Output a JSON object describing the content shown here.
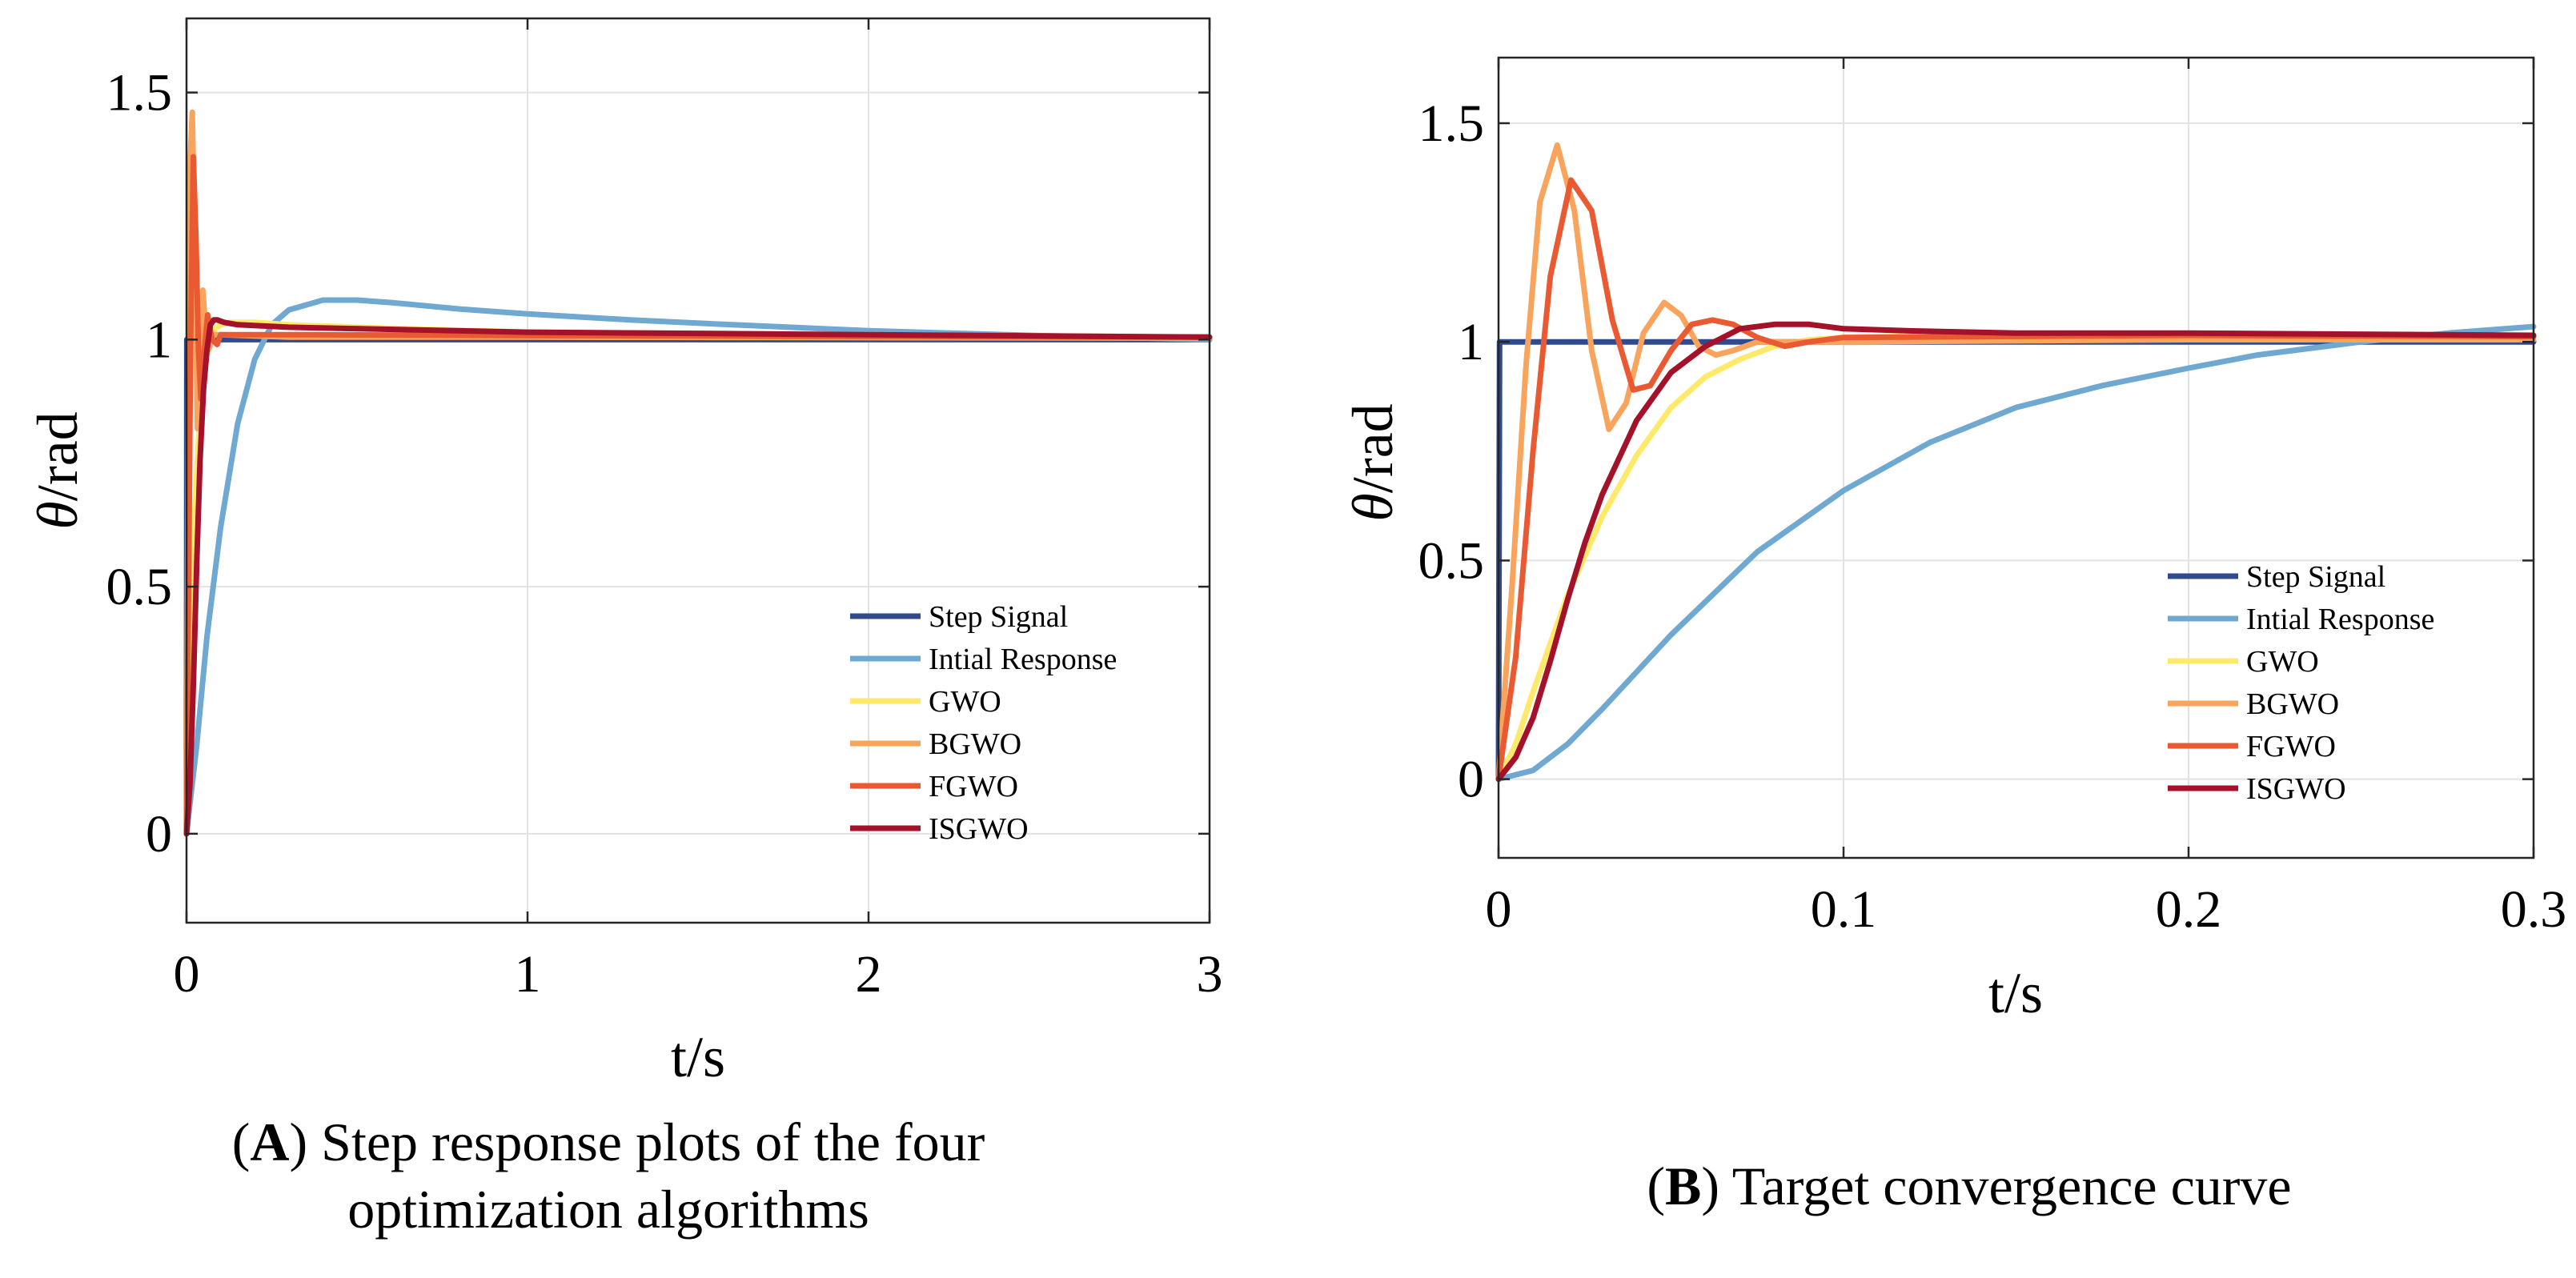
{
  "chart_data": [
    {
      "type": "line",
      "panel": "A",
      "title": "",
      "xlabel": "t/s",
      "ylabel_symbol": "θ",
      "ylabel_unit": "/rad",
      "xlim": [
        0,
        3
      ],
      "ylim": [
        -0.18,
        1.65
      ],
      "xticks": [
        0,
        1,
        2,
        3
      ],
      "xtick_labels": [
        "0",
        "1",
        "2",
        "3"
      ],
      "yticks": [
        0,
        0.5,
        1,
        1.5
      ],
      "ytick_labels": [
        "0",
        "0.5",
        "1",
        "1.5"
      ],
      "grid": true,
      "legend_position": "bottom-right",
      "series": [
        {
          "name": "Step Signal",
          "color": "#2f4a8f",
          "x": [
            0,
            0.001,
            3
          ],
          "y": [
            0,
            1,
            1
          ]
        },
        {
          "name": "Intial Response",
          "color": "#6fa8d0",
          "x": [
            0,
            0.03,
            0.06,
            0.1,
            0.15,
            0.2,
            0.25,
            0.3,
            0.4,
            0.5,
            0.6,
            0.8,
            1.0,
            1.3,
            1.6,
            2.0,
            2.5,
            3.0
          ],
          "y": [
            0,
            0.18,
            0.4,
            0.62,
            0.83,
            0.96,
            1.03,
            1.06,
            1.08,
            1.08,
            1.075,
            1.062,
            1.052,
            1.04,
            1.03,
            1.018,
            1.008,
            1.0
          ]
        },
        {
          "name": "GWO",
          "color": "#ffe96b",
          "x": [
            0,
            0.02,
            0.04,
            0.06,
            0.08,
            0.1,
            0.13,
            0.2,
            0.3,
            0.5,
            1.0,
            3.0
          ],
          "y": [
            0,
            0.6,
            0.86,
            0.97,
            1.02,
            1.03,
            1.035,
            1.035,
            1.03,
            1.025,
            1.015,
            1.005
          ]
        },
        {
          "name": "BGWO",
          "color": "#f9a45c",
          "x": [
            0,
            0.005,
            0.01,
            0.017,
            0.025,
            0.032,
            0.04,
            0.048,
            0.056,
            0.065,
            0.08,
            0.1,
            0.3,
            1.0,
            3.0
          ],
          "y": [
            0,
            0.85,
            1.35,
            1.46,
            1.15,
            0.82,
            0.9,
            1.1,
            1.02,
            0.98,
            1.01,
            1.01,
            1.005,
            1.005,
            1.003
          ]
        },
        {
          "name": "FGWO",
          "color": "#ea5a32",
          "x": [
            0,
            0.006,
            0.012,
            0.02,
            0.028,
            0.035,
            0.042,
            0.05,
            0.062,
            0.075,
            0.09,
            0.1,
            0.3,
            1.0,
            3.0
          ],
          "y": [
            0,
            0.5,
            1.0,
            1.37,
            1.2,
            0.98,
            0.88,
            0.96,
            1.05,
            1.0,
            0.99,
            1.01,
            1.01,
            1.008,
            1.005
          ]
        },
        {
          "name": "ISGWO",
          "color": "#a3112a",
          "x": [
            0,
            0.01,
            0.02,
            0.03,
            0.04,
            0.05,
            0.06,
            0.07,
            0.08,
            0.09,
            0.11,
            0.15,
            0.3,
            1.0,
            3.0
          ],
          "y": [
            0,
            0.1,
            0.3,
            0.55,
            0.76,
            0.9,
            0.98,
            1.03,
            1.04,
            1.04,
            1.035,
            1.03,
            1.025,
            1.015,
            1.005
          ]
        }
      ]
    },
    {
      "type": "line",
      "panel": "B",
      "title": "",
      "xlabel": "t/s",
      "ylabel_symbol": "θ",
      "ylabel_unit": "/rad",
      "xlim": [
        0,
        0.3
      ],
      "ylim": [
        -0.18,
        1.65
      ],
      "xticks": [
        0,
        0.1,
        0.2,
        0.3
      ],
      "xtick_labels": [
        "0",
        "0.1",
        "0.2",
        "0.3"
      ],
      "yticks": [
        0,
        0.5,
        1,
        1.5
      ],
      "ytick_labels": [
        "0",
        "0.5",
        "1",
        "1.5"
      ],
      "grid": true,
      "legend_position": "bottom-right",
      "series": [
        {
          "name": "Step Signal",
          "color": "#2f4a8f",
          "x": [
            0,
            0.0003,
            0.3
          ],
          "y": [
            0,
            1,
            1
          ]
        },
        {
          "name": "Intial Response",
          "color": "#6fa8d0",
          "x": [
            0,
            0.01,
            0.02,
            0.03,
            0.05,
            0.075,
            0.1,
            0.125,
            0.15,
            0.175,
            0.2,
            0.22,
            0.25,
            0.275,
            0.3
          ],
          "y": [
            0,
            0.02,
            0.08,
            0.16,
            0.33,
            0.52,
            0.66,
            0.77,
            0.85,
            0.9,
            0.94,
            0.97,
            1.0,
            1.02,
            1.035
          ]
        },
        {
          "name": "GWO",
          "color": "#ffe96b",
          "x": [
            0,
            0.005,
            0.01,
            0.02,
            0.03,
            0.04,
            0.05,
            0.06,
            0.07,
            0.08,
            0.09,
            0.1,
            0.12,
            0.15,
            0.2,
            0.3
          ],
          "y": [
            0,
            0.08,
            0.2,
            0.42,
            0.6,
            0.74,
            0.85,
            0.92,
            0.96,
            0.99,
            1.005,
            1.01,
            1.015,
            1.015,
            1.015,
            1.01
          ]
        },
        {
          "name": "BGWO",
          "color": "#f9a45c",
          "x": [
            0,
            0.004,
            0.008,
            0.012,
            0.017,
            0.022,
            0.027,
            0.032,
            0.037,
            0.042,
            0.048,
            0.053,
            0.058,
            0.063,
            0.068,
            0.075,
            0.085,
            0.1,
            0.2,
            0.3
          ],
          "y": [
            0,
            0.45,
            0.95,
            1.32,
            1.45,
            1.3,
            0.98,
            0.8,
            0.86,
            1.02,
            1.09,
            1.06,
            0.99,
            0.97,
            0.98,
            1.0,
            1.0,
            1.0,
            1.005,
            1.005
          ]
        },
        {
          "name": "FGWO",
          "color": "#ea5a32",
          "x": [
            0,
            0.005,
            0.01,
            0.015,
            0.021,
            0.027,
            0.033,
            0.039,
            0.044,
            0.05,
            0.056,
            0.062,
            0.068,
            0.075,
            0.083,
            0.09,
            0.1,
            0.2,
            0.3
          ],
          "y": [
            0,
            0.28,
            0.75,
            1.15,
            1.37,
            1.3,
            1.05,
            0.89,
            0.9,
            0.98,
            1.04,
            1.05,
            1.04,
            1.01,
            0.99,
            1.0,
            1.01,
            1.015,
            1.012
          ]
        },
        {
          "name": "ISGWO",
          "color": "#a3112a",
          "x": [
            0,
            0.005,
            0.01,
            0.015,
            0.02,
            0.025,
            0.03,
            0.04,
            0.05,
            0.06,
            0.07,
            0.08,
            0.09,
            0.1,
            0.12,
            0.15,
            0.2,
            0.3
          ],
          "y": [
            0,
            0.05,
            0.14,
            0.27,
            0.41,
            0.54,
            0.65,
            0.82,
            0.93,
            0.99,
            1.03,
            1.04,
            1.04,
            1.03,
            1.025,
            1.02,
            1.02,
            1.015
          ]
        }
      ]
    }
  ],
  "captions": [
    {
      "letter": "A",
      "line1": ") Step response plots of the four",
      "line2": "optimization algorithms"
    },
    {
      "letter": "B",
      "line1": ") Target convergence curve",
      "line2": ""
    }
  ]
}
